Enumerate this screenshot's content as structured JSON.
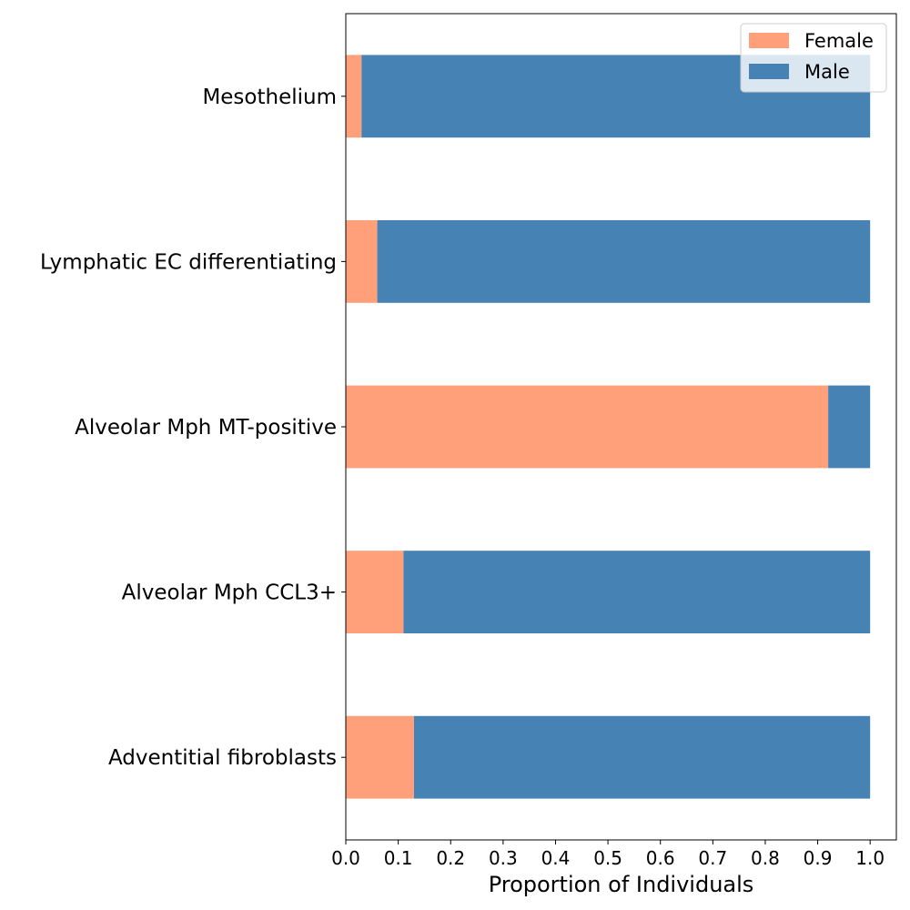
{
  "chart_data": {
    "type": "bar",
    "orientation": "horizontal",
    "stacked": true,
    "categories": [
      "Mesothelium",
      "Lymphatic EC differentiating",
      "Alveolar Mph MT-positive",
      "Alveolar Mph CCL3+",
      "Adventitial fibroblasts"
    ],
    "series": [
      {
        "name": "Female",
        "color": "#FFA07A",
        "values": [
          0.03,
          0.06,
          0.92,
          0.11,
          0.13
        ]
      },
      {
        "name": "Male",
        "color": "#4682B4",
        "values": [
          0.97,
          0.94,
          0.08,
          0.89,
          0.87
        ]
      }
    ],
    "xlabel": "Proportion of Individuals",
    "ylabel": "",
    "xlim": [
      0.0,
      1.05
    ],
    "xticks": [
      "0.0",
      "0.1",
      "0.2",
      "0.3",
      "0.4",
      "0.5",
      "0.6",
      "0.7",
      "0.8",
      "0.9",
      "1.0"
    ],
    "grid": false,
    "legend": "top-right"
  }
}
